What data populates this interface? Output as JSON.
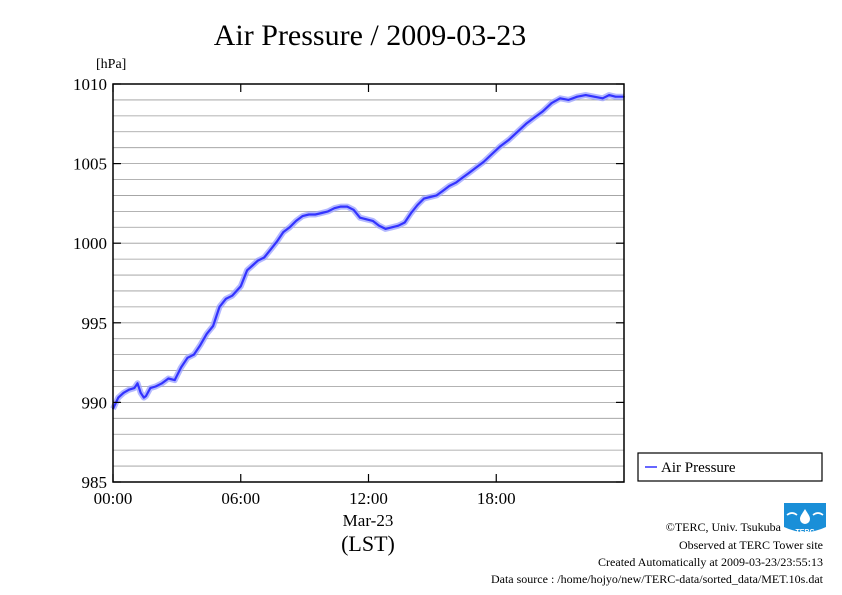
{
  "chart_data": {
    "type": "line",
    "title": "Air Pressure / 2009-03-23",
    "ylabel": "[hPa]",
    "ylim": [
      985,
      1010
    ],
    "yticks": [
      "985",
      "990",
      "995",
      "1000",
      "1005",
      "1010"
    ],
    "xlim": [
      0,
      24
    ],
    "xticks": [
      {
        "value": 0,
        "label": "00:00"
      },
      {
        "value": 6,
        "label": "06:00"
      },
      {
        "value": 12,
        "label": "12:00"
      },
      {
        "value": 18,
        "label": "18:00"
      }
    ],
    "xlabel_date": "Mar-23",
    "xlabel": "(LST)",
    "grid": true,
    "legend_position": "right-bottom",
    "series": [
      {
        "name": "Air Pressure",
        "color": "#3333ff",
        "x": [
          0,
          0.25,
          0.5,
          0.75,
          1.0,
          1.15,
          1.3,
          1.45,
          1.55,
          1.75,
          2.0,
          2.3,
          2.6,
          2.9,
          3.2,
          3.5,
          3.8,
          4.1,
          4.4,
          4.7,
          5.0,
          5.3,
          5.6,
          6.0,
          6.3,
          6.55,
          6.8,
          7.1,
          7.4,
          7.7,
          8.0,
          8.3,
          8.6,
          8.9,
          9.2,
          9.5,
          9.8,
          10.1,
          10.4,
          10.7,
          11.0,
          11.3,
          11.6,
          11.9,
          12.2,
          12.5,
          12.8,
          13.1,
          13.4,
          13.7,
          14.0,
          14.3,
          14.6,
          14.9,
          15.2,
          15.5,
          15.8,
          16.1,
          16.4,
          16.7,
          17.0,
          17.4,
          17.8,
          18.2,
          18.6,
          19.0,
          19.4,
          19.8,
          20.2,
          20.6,
          21.0,
          21.4,
          21.8,
          22.2,
          22.6,
          23.0,
          23.3,
          23.6,
          24.0
        ],
        "values": [
          989.6,
          990.3,
          990.6,
          990.8,
          990.9,
          991.2,
          990.6,
          990.3,
          990.4,
          990.9,
          991.0,
          991.2,
          991.5,
          991.4,
          992.2,
          992.8,
          993.0,
          993.6,
          994.3,
          994.8,
          996.0,
          996.5,
          996.7,
          997.3,
          998.3,
          998.6,
          998.9,
          999.1,
          999.6,
          1000.1,
          1000.7,
          1001.0,
          1001.4,
          1001.7,
          1001.8,
          1001.8,
          1001.9,
          1002.0,
          1002.2,
          1002.3,
          1002.3,
          1002.1,
          1001.6,
          1001.5,
          1001.4,
          1001.1,
          1000.9,
          1001.0,
          1001.1,
          1001.3,
          1001.9,
          1002.4,
          1002.8,
          1002.9,
          1003.0,
          1003.3,
          1003.6,
          1003.8,
          1004.1,
          1004.4,
          1004.7,
          1005.1,
          1005.6,
          1006.1,
          1006.5,
          1007.0,
          1007.5,
          1007.9,
          1008.3,
          1008.8,
          1009.1,
          1009.0,
          1009.2,
          1009.3,
          1009.2,
          1009.1,
          1009.3,
          1009.2,
          1009.2
        ]
      }
    ]
  },
  "footer": {
    "copyright": "©TERC, Univ. Tsukuba",
    "site": "Observed at TERC Tower site",
    "created": "Created Automatically at 2009-03-23/23:55:13",
    "source": "Data source : /home/hojyo/new/TERC-data/sorted_data/MET.10s.dat"
  },
  "logo": {
    "text": "TERC",
    "color": "#1a8fd8"
  }
}
